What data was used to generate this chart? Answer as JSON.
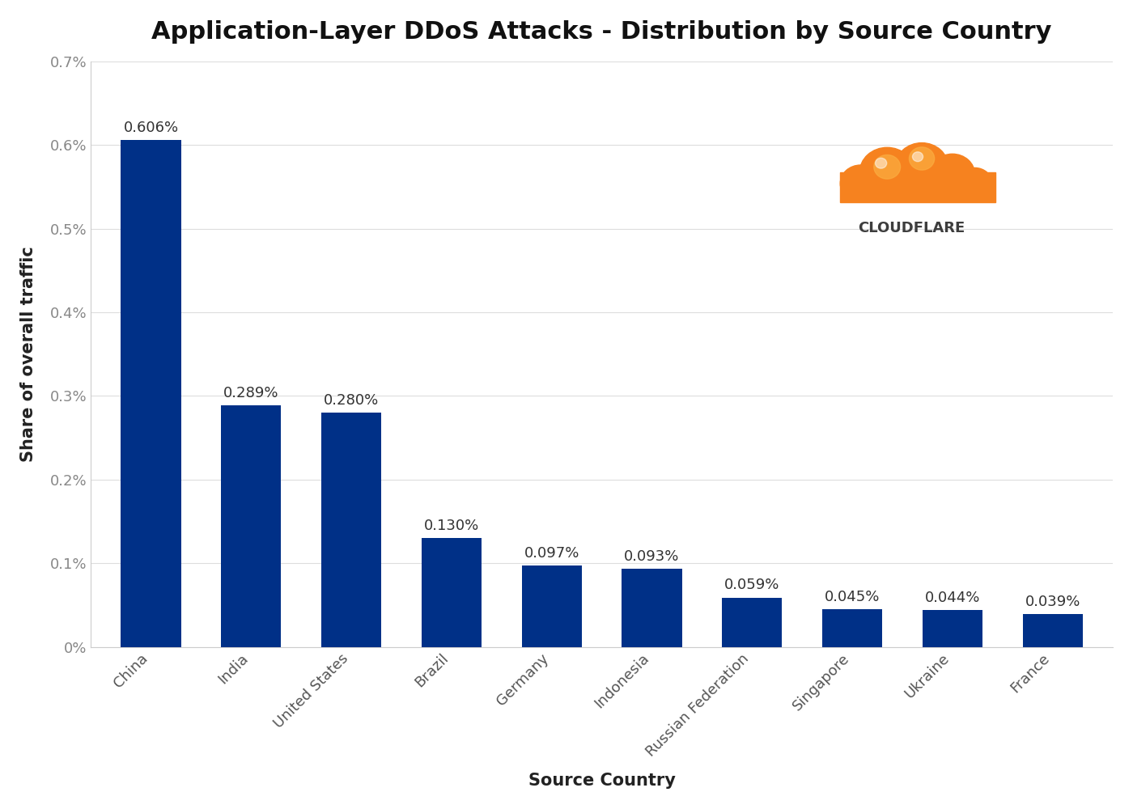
{
  "title": "Application-Layer DDoS Attacks - Distribution by Source Country",
  "xlabel": "Source Country",
  "ylabel": "Share of overall traffic",
  "categories": [
    "China",
    "India",
    "United States",
    "Brazil",
    "Germany",
    "Indonesia",
    "Russian Federation",
    "Singapore",
    "Ukraine",
    "France"
  ],
  "values": [
    0.00606,
    0.00289,
    0.0028,
    0.0013,
    0.00097,
    0.00093,
    0.00059,
    0.00045,
    0.00044,
    0.00039
  ],
  "labels": [
    "0.606%",
    "0.289%",
    "0.280%",
    "0.130%",
    "0.097%",
    "0.093%",
    "0.059%",
    "0.045%",
    "0.044%",
    "0.039%"
  ],
  "bar_color": "#003087",
  "background_color": "#ffffff",
  "plot_bg_color": "#ffffff",
  "grid_color": "#dddddd",
  "title_fontsize": 22,
  "label_fontsize": 15,
  "tick_fontsize": 13,
  "bar_label_fontsize": 13,
  "ylim": [
    0,
    0.007
  ],
  "yticks": [
    0,
    0.001,
    0.002,
    0.003,
    0.004,
    0.005,
    0.006,
    0.007
  ],
  "ytick_labels": [
    "0%",
    "0.1%",
    "0.2%",
    "0.3%",
    "0.4%",
    "0.5%",
    "0.6%",
    "0.7%"
  ],
  "cloudflare_text": "CLOUDFLARE",
  "cloudflare_text_color": "#3d3d3d",
  "cloudflare_cloud_orange": "#f6821f",
  "cloudflare_cloud_lightorange": "#fbad41",
  "cloudflare_cloud_white": "#ffffff"
}
